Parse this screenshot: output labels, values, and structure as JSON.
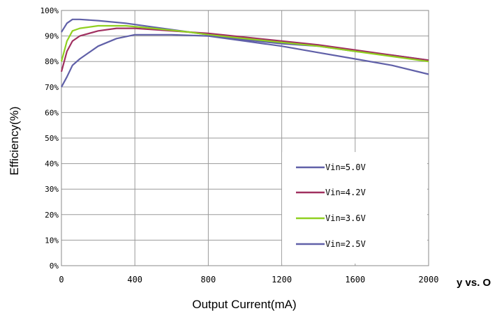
{
  "chart_data": {
    "type": "line",
    "xlabel": "Output Current(mA)",
    "ylabel": "Efficiency(%)",
    "xlim": [
      0,
      2000
    ],
    "ylim": [
      0,
      100
    ],
    "x_ticks": [
      0,
      400,
      800,
      1200,
      1600,
      2000
    ],
    "x_tick_labels": [
      "0",
      "400",
      "800",
      "1200",
      "1600",
      "2000"
    ],
    "y_ticks": [
      0,
      10,
      20,
      30,
      40,
      50,
      60,
      70,
      80,
      90,
      100
    ],
    "y_tick_labels": [
      "0%",
      "10%",
      "20%",
      "30%",
      "40%",
      "50%",
      "60%",
      "70%",
      "80%",
      "90%",
      "100%"
    ],
    "grid": true,
    "legend_position": "bottom-right",
    "truncated_title": "y vs. O",
    "series": [
      {
        "name": "Vin=5.0V",
        "color": "#6060a8",
        "points": [
          [
            0,
            91.5
          ],
          [
            30,
            95
          ],
          [
            60,
            96.5
          ],
          [
            100,
            96.5
          ],
          [
            200,
            96
          ],
          [
            350,
            95
          ],
          [
            500,
            93.5
          ],
          [
            700,
            91.5
          ],
          [
            800,
            90.5
          ],
          [
            1000,
            88.5
          ],
          [
            1200,
            87
          ],
          [
            1400,
            86
          ],
          [
            1600,
            84
          ],
          [
            1800,
            82.5
          ],
          [
            2000,
            80.5
          ]
        ]
      },
      {
        "name": "Vin=4.2V",
        "color": "#a03060",
        "points": [
          [
            0,
            76
          ],
          [
            30,
            84
          ],
          [
            60,
            88
          ],
          [
            100,
            90
          ],
          [
            200,
            92
          ],
          [
            300,
            93
          ],
          [
            400,
            93
          ],
          [
            500,
            92.5
          ],
          [
            700,
            91.5
          ],
          [
            800,
            91
          ],
          [
            1000,
            89.5
          ],
          [
            1200,
            88
          ],
          [
            1400,
            86.5
          ],
          [
            1600,
            84.5
          ],
          [
            1800,
            82.5
          ],
          [
            2000,
            80.5
          ]
        ]
      },
      {
        "name": "Vin=3.6V",
        "color": "#90d020",
        "points": [
          [
            0,
            80
          ],
          [
            30,
            88
          ],
          [
            60,
            92
          ],
          [
            100,
            93
          ],
          [
            200,
            94
          ],
          [
            300,
            94
          ],
          [
            350,
            94
          ],
          [
            500,
            93
          ],
          [
            700,
            91.5
          ],
          [
            800,
            90.5
          ],
          [
            1000,
            89
          ],
          [
            1200,
            87.5
          ],
          [
            1400,
            86
          ],
          [
            1600,
            84
          ],
          [
            1800,
            82
          ],
          [
            2000,
            80
          ]
        ]
      },
      {
        "name": "Vin=2.5V",
        "color": "#6060a8",
        "points": [
          [
            0,
            70
          ],
          [
            30,
            74
          ],
          [
            60,
            78.5
          ],
          [
            100,
            81
          ],
          [
            200,
            86
          ],
          [
            300,
            89
          ],
          [
            400,
            90.5
          ],
          [
            600,
            90.5
          ],
          [
            800,
            90
          ],
          [
            1000,
            88
          ],
          [
            1200,
            86
          ],
          [
            1400,
            83.5
          ],
          [
            1600,
            81
          ],
          [
            1800,
            78.5
          ],
          [
            2000,
            75
          ]
        ]
      }
    ]
  }
}
